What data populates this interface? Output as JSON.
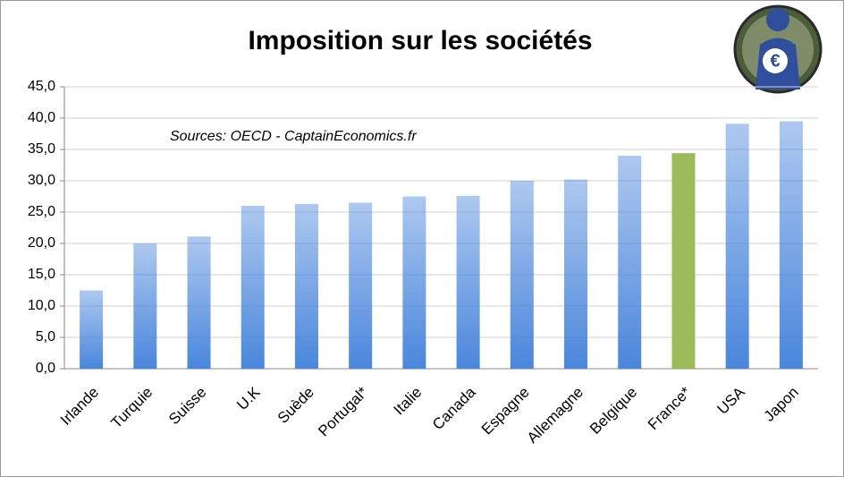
{
  "chart_data": {
    "type": "bar",
    "title": "Imposition sur les sociétés",
    "annotation": "Sources: OECD - CaptainEconomics.fr",
    "categories": [
      "Irlande",
      "Turquie",
      "Suisse",
      "U.K",
      "Suède",
      "Portugal*",
      "Italie",
      "Canada",
      "Espagne",
      "Allemagne",
      "Belgique",
      "France*",
      "USA",
      "Japon"
    ],
    "values": [
      12.5,
      20,
      21.1,
      26,
      26.3,
      26.5,
      27.5,
      27.6,
      30,
      30.2,
      34,
      34.4,
      39.1,
      39.5
    ],
    "colors": [
      "#4a86dc",
      "#4a86dc",
      "#4a86dc",
      "#4a86dc",
      "#4a86dc",
      "#4a86dc",
      "#4a86dc",
      "#4a86dc",
      "#4a86dc",
      "#4a86dc",
      "#4a86dc",
      "#9bbb59",
      "#4a86dc",
      "#4a86dc"
    ],
    "ylim": [
      0,
      45
    ],
    "yticks": [
      {
        "value": 0,
        "label": "0,0"
      },
      {
        "value": 5,
        "label": "5,0"
      },
      {
        "value": 10,
        "label": "10,0"
      },
      {
        "value": 15,
        "label": "15,0"
      },
      {
        "value": 20,
        "label": "20,0"
      },
      {
        "value": 25,
        "label": "25,0"
      },
      {
        "value": 30,
        "label": "30,0"
      },
      {
        "value": 35,
        "label": "35,0"
      },
      {
        "value": 40,
        "label": "40,0"
      },
      {
        "value": 45,
        "label": "45,0"
      }
    ],
    "grid": true
  }
}
